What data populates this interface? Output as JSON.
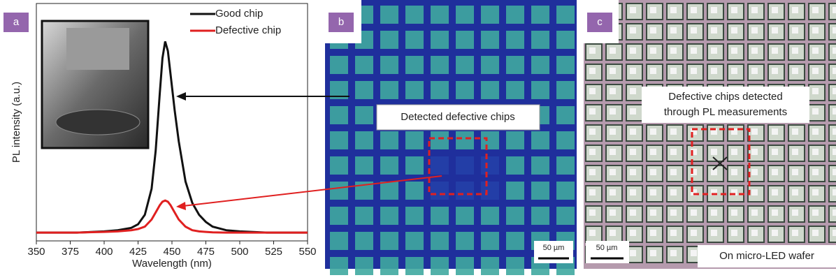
{
  "chart_data": {
    "type": "line",
    "x_label": "Wavelength (nm)",
    "y_label": "PL intensity (a.u.)",
    "x": [
      350,
      380,
      400,
      410,
      420,
      425,
      430,
      435,
      438,
      441,
      443,
      445,
      447,
      449,
      452,
      455,
      460,
      465,
      470,
      475,
      480,
      490,
      500,
      520,
      550
    ],
    "series": [
      {
        "name": "Good chip",
        "color": "#111111",
        "values": [
          3.5,
          3.5,
          4,
          4.5,
          5.5,
          7,
          11,
          22,
          38,
          62,
          77,
          84,
          80,
          70,
          55,
          42,
          25,
          16,
          11,
          8,
          6,
          4.5,
          4,
          3.5,
          3.5
        ]
      },
      {
        "name": "Defective chip",
        "color": "#e02020",
        "values": [
          3.5,
          3.5,
          3.8,
          4,
          4.5,
          5,
          6,
          9,
          12,
          15,
          16.5,
          17,
          16.5,
          15,
          12,
          9,
          6,
          4.5,
          4,
          3.8,
          3.6,
          3.5,
          3.5,
          3.5,
          3.5
        ]
      }
    ],
    "xlim": [
      350,
      550
    ],
    "xticks": [
      350,
      375,
      400,
      425,
      450,
      475,
      500,
      525,
      550
    ],
    "ylim": [
      0,
      100
    ],
    "legend": "upper right"
  },
  "panel_labels": [
    "a",
    "b",
    "c"
  ],
  "panel_b": {
    "annotation": "Detected defective chips",
    "scale_bar": "50 µm"
  },
  "panel_c": {
    "annotation": [
      "Defective chips detected",
      "through PL measurements"
    ],
    "caption": "On micro-LED wafer",
    "scale_bar": "50 µm"
  }
}
